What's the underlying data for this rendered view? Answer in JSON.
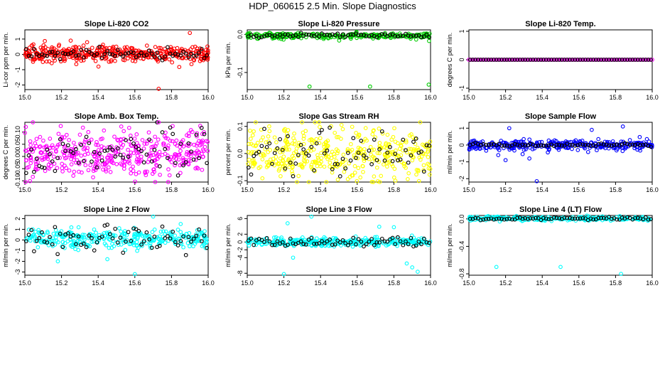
{
  "page": {
    "title": "HDP_060615  2.5 Min. Slope Diagnostics"
  },
  "chart_data": [
    {
      "type": "scatter",
      "title": "Slope Li-820 CO2",
      "ylabel": "Li-cor ppm per min.",
      "xlim": [
        15.0,
        16.0
      ],
      "ylim": [
        -2.3,
        1.6
      ],
      "xticks": [
        15.0,
        15.2,
        15.4,
        15.6,
        15.8,
        16.0
      ],
      "yticks": [
        -2,
        -1,
        0,
        1
      ],
      "color": "#ff0000",
      "center": 0.05,
      "spread": 0.25,
      "black_spread": 0.15,
      "count": 420,
      "black_count": 70,
      "outliers": [
        [
          15.73,
          -2.25
        ],
        [
          15.9,
          1.4
        ],
        [
          15.25,
          0.9
        ]
      ]
    },
    {
      "type": "scatter",
      "title": "Slope Li-820 Pressure",
      "ylabel": "kPa per min.",
      "xlim": [
        15.0,
        16.0
      ],
      "ylim": [
        -0.145,
        0.012
      ],
      "xticks": [
        15.0,
        15.2,
        15.4,
        15.6,
        15.8,
        16.0
      ],
      "yticks": [
        -0.1,
        0.0
      ],
      "color": "#00cc00",
      "center": -0.003,
      "spread": 0.004,
      "black_spread": 0.003,
      "count": 260,
      "black_count": 70,
      "outliers": [
        [
          15.34,
          -0.137
        ],
        [
          15.67,
          -0.137
        ],
        [
          15.99,
          -0.132
        ]
      ]
    },
    {
      "type": "scatter",
      "title": "Slope Li-820 Temp.",
      "ylabel": "degrees C per min.",
      "xlim": [
        15.0,
        16.0
      ],
      "ylim": [
        -1.05,
        1.05
      ],
      "xticks": [
        15.0,
        15.2,
        15.4,
        15.6,
        15.8,
        16.0
      ],
      "yticks": [
        -1.0,
        0.0,
        1.0
      ],
      "color": "#ff00ff",
      "center": 0.0,
      "spread": 0.0,
      "black_spread": 0.0,
      "count": 1,
      "black_count": 70,
      "outliers": []
    },
    {
      "type": "scatter",
      "title": "Slope Amb. Box Temp.",
      "ylabel": "degrees C per min.",
      "xlim": [
        15.0,
        16.0
      ],
      "ylim": [
        -0.105,
        0.14
      ],
      "xticks": [
        15.0,
        15.2,
        15.4,
        15.6,
        15.8,
        16.0
      ],
      "yticks": [
        -0.1,
        -0.05,
        0.0,
        0.05,
        0.1
      ],
      "color": "#ff00ff",
      "center": 0.015,
      "spread": 0.05,
      "black_spread": 0.05,
      "count": 420,
      "black_count": 70,
      "outliers": [
        [
          15.73,
          0.14
        ]
      ]
    },
    {
      "type": "scatter",
      "title": "Slope Gas Stream RH",
      "ylabel": "percent per min.",
      "xlim": [
        15.0,
        16.0
      ],
      "ylim": [
        -0.105,
        0.115
      ],
      "xticks": [
        15.0,
        15.2,
        15.4,
        15.6,
        15.8,
        16.0
      ],
      "yticks": [
        -0.1,
        0.0,
        0.1
      ],
      "color": "#ffff00",
      "center": 0.0,
      "spread": 0.045,
      "black_spread": 0.045,
      "count": 420,
      "black_count": 70,
      "outliers": []
    },
    {
      "type": "scatter",
      "title": "Slope Sample Flow",
      "ylabel": "ml/min per min.",
      "xlim": [
        15.0,
        16.0
      ],
      "ylim": [
        -2.2,
        1.35
      ],
      "xticks": [
        15.0,
        15.2,
        15.4,
        15.6,
        15.8,
        16.0
      ],
      "yticks": [
        -2.0,
        -1.0,
        0.0,
        1.0
      ],
      "color": "#0000ff",
      "center": 0.0,
      "spread": 0.15,
      "black_spread": 0.05,
      "count": 320,
      "black_count": 70,
      "outliers": [
        [
          15.37,
          -2.15
        ],
        [
          15.84,
          1.1
        ],
        [
          15.22,
          1.0
        ],
        [
          15.67,
          0.9
        ],
        [
          15.2,
          -0.9
        ],
        [
          15.33,
          -0.8
        ],
        [
          15.16,
          -0.6
        ]
      ]
    },
    {
      "type": "scatter",
      "title": "Slope Line 2 Flow",
      "ylabel": "ml/min per min.",
      "xlim": [
        15.0,
        16.0
      ],
      "ylim": [
        -3.3,
        2.3
      ],
      "xticks": [
        15.0,
        15.2,
        15.4,
        15.6,
        15.8,
        16.0
      ],
      "yticks": [
        -3,
        -2,
        -1,
        0,
        1,
        2
      ],
      "color": "#00ffff",
      "center": 0.1,
      "spread": 0.45,
      "black_spread": 0.6,
      "count": 320,
      "black_count": 70,
      "outliers": [
        [
          15.6,
          -3.2
        ],
        [
          15.45,
          -1.8
        ],
        [
          15.18,
          -2.0
        ],
        [
          15.7,
          2.2
        ],
        [
          15.85,
          1.5
        ]
      ]
    },
    {
      "type": "scatter",
      "title": "Slope Line 3 Flow",
      "ylabel": "ml/min per min.",
      "xlim": [
        15.0,
        16.0
      ],
      "ylim": [
        -8.5,
        6.8
      ],
      "xticks": [
        15.0,
        15.2,
        15.4,
        15.6,
        15.8,
        16.0
      ],
      "yticks": [
        -8,
        -4,
        -2,
        0,
        2,
        6
      ],
      "color": "#00ffff",
      "center": 0.0,
      "spread": 0.55,
      "black_spread": 0.55,
      "count": 320,
      "black_count": 70,
      "outliers": [
        [
          15.2,
          -8.2
        ],
        [
          15.35,
          6.5
        ],
        [
          15.22,
          4.8
        ],
        [
          15.25,
          -4.0
        ],
        [
          15.93,
          -7.6
        ],
        [
          15.72,
          3.9
        ],
        [
          15.8,
          3.8
        ],
        [
          15.87,
          -5.5
        ],
        [
          15.9,
          -6.5
        ]
      ]
    },
    {
      "type": "scatter",
      "title": "Slope Line 4 (LT) Flow",
      "ylabel": "ml/min per min.",
      "xlim": [
        15.0,
        16.0
      ],
      "ylim": [
        -0.82,
        0.05
      ],
      "xticks": [
        15.0,
        15.2,
        15.4,
        15.6,
        15.8,
        16.0
      ],
      "yticks": [
        -0.8,
        -0.4,
        0.0
      ],
      "color": "#00ffff",
      "center": 0.005,
      "spread": 0.015,
      "black_spread": 0.01,
      "count": 260,
      "black_count": 70,
      "outliers": [
        [
          15.15,
          -0.7
        ],
        [
          15.5,
          -0.7
        ],
        [
          15.83,
          -0.8
        ]
      ]
    }
  ]
}
